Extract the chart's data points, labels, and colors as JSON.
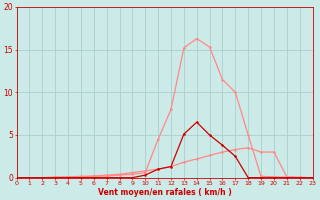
{
  "background_color": "#cceae7",
  "grid_color": "#aacfcc",
  "x_labels": [
    0,
    1,
    2,
    3,
    4,
    5,
    6,
    7,
    8,
    9,
    10,
    11,
    12,
    13,
    14,
    15,
    16,
    17,
    18,
    19,
    20,
    21,
    22,
    23
  ],
  "xlabel": "Vent moyen/en rafales ( km/h )",
  "ylim": [
    0,
    20
  ],
  "xlim": [
    0,
    23
  ],
  "yticks": [
    0,
    5,
    10,
    15,
    20
  ],
  "curve1_x": [
    0,
    1,
    2,
    3,
    4,
    5,
    6,
    7,
    8,
    9,
    10,
    11,
    12,
    13,
    14,
    15,
    16,
    17,
    18,
    19,
    20,
    21,
    22,
    23
  ],
  "curve1_y": [
    0,
    0,
    0,
    0.05,
    0.05,
    0.1,
    0.15,
    0.2,
    0.3,
    0.4,
    0.6,
    4.5,
    8.0,
    15.2,
    16.3,
    15.3,
    11.5,
    10.0,
    5.0,
    0.15,
    0.1,
    0.05,
    0.0,
    0.0
  ],
  "curve1_color": "#ff8888",
  "curve2_x": [
    0,
    1,
    2,
    3,
    4,
    5,
    6,
    7,
    8,
    9,
    10,
    11,
    12,
    13,
    14,
    15,
    16,
    17,
    18,
    19,
    20,
    21,
    22,
    23
  ],
  "curve2_y": [
    0,
    0,
    0,
    0.05,
    0.1,
    0.15,
    0.2,
    0.3,
    0.4,
    0.6,
    0.8,
    1.0,
    1.3,
    1.8,
    2.2,
    2.6,
    3.0,
    3.3,
    3.5,
    3.0,
    3.0,
    0.1,
    0.05,
    0.0
  ],
  "curve2_color": "#ff8888",
  "curve3_x": [
    0,
    1,
    2,
    3,
    4,
    5,
    6,
    7,
    8,
    9,
    10,
    11,
    12,
    13,
    14,
    15,
    16,
    17,
    18,
    19,
    20,
    21,
    22,
    23
  ],
  "curve3_y": [
    0,
    0,
    0,
    0.0,
    0.0,
    0.0,
    0.0,
    0.0,
    0.0,
    0.0,
    0.3,
    1.0,
    1.3,
    5.1,
    6.5,
    5.0,
    3.8,
    2.5,
    0.0,
    0.0,
    0.0,
    0.0,
    0.0,
    0.0
  ],
  "curve3_color": "#cc0000",
  "xlabel_color": "#cc0000",
  "tick_color": "#cc0000",
  "marker": "o",
  "markersize": 1.8,
  "linewidth": 0.9
}
